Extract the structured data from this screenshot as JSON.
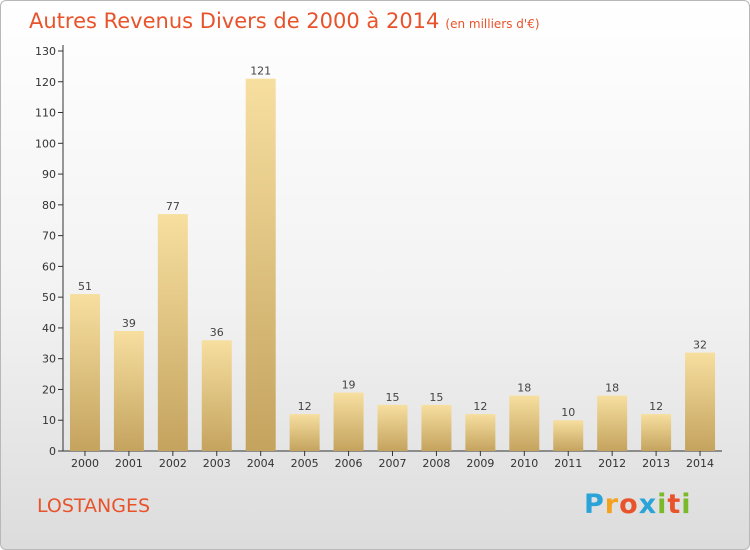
{
  "header": {
    "title": "Autres Revenus Divers de 2000 à 2014",
    "unit": "(en milliers d'€)"
  },
  "footer": {
    "town": "LOSTANGES",
    "brand": "Proxiti",
    "brand_colors": [
      "#2aa3d8",
      "#f4a11d",
      "#e8532b",
      "#2aa3d8",
      "#7ab929",
      "#e8532b",
      "#7ab929"
    ]
  },
  "colors": {
    "title": "#e8532b",
    "bar_top": "#f7dfa0",
    "bar_bottom": "#c4a35e",
    "axis": "#333333"
  },
  "chart_data": {
    "type": "bar",
    "title": "Autres Revenus Divers de 2000 à 2014",
    "subtitle": "(en milliers d'€)",
    "categories": [
      "2000",
      "2001",
      "2002",
      "2003",
      "2004",
      "2005",
      "2006",
      "2007",
      "2008",
      "2009",
      "2010",
      "2011",
      "2012",
      "2013",
      "2014"
    ],
    "values": [
      51,
      39,
      77,
      36,
      121,
      12,
      19,
      15,
      15,
      12,
      18,
      10,
      18,
      12,
      32
    ],
    "ylim": [
      0,
      130
    ],
    "yticks": [
      0,
      10,
      20,
      30,
      40,
      50,
      60,
      70,
      80,
      90,
      100,
      110,
      120,
      130
    ],
    "grid": false,
    "data_labels": true
  }
}
